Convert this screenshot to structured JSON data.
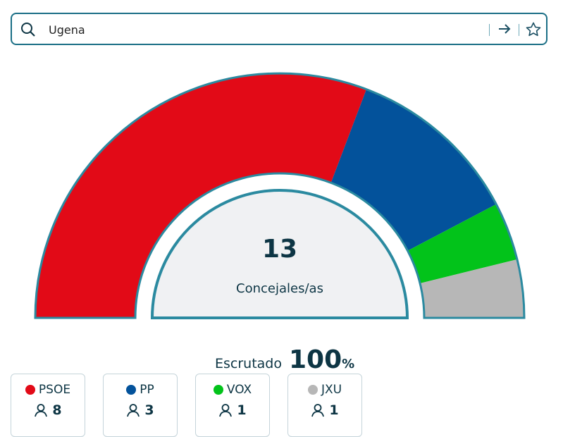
{
  "search": {
    "value": "Ugena",
    "icon": "search-icon"
  },
  "chart_data": {
    "type": "pie",
    "shape": "semicircle-parliament",
    "total": "13",
    "total_label": "Concejales/as",
    "categories": [
      "PSOE",
      "PP",
      "VOX",
      "JXU"
    ],
    "values": [
      8,
      3,
      1,
      1
    ],
    "colors": [
      "#e20a17",
      "#03529b",
      "#02c31a",
      "#b7b7b7"
    ]
  },
  "scrutiny": {
    "label": "Escrutado",
    "value": "100",
    "unit": "%"
  },
  "parties": [
    {
      "name": "PSOE",
      "seats": "8",
      "color": "#e20a17"
    },
    {
      "name": "PP",
      "seats": "3",
      "color": "#03529b"
    },
    {
      "name": "VOX",
      "seats": "1",
      "color": "#02c31a"
    },
    {
      "name": "JXU",
      "seats": "1",
      "color": "#b7b7b7"
    }
  ],
  "accent": "#1b6f86"
}
